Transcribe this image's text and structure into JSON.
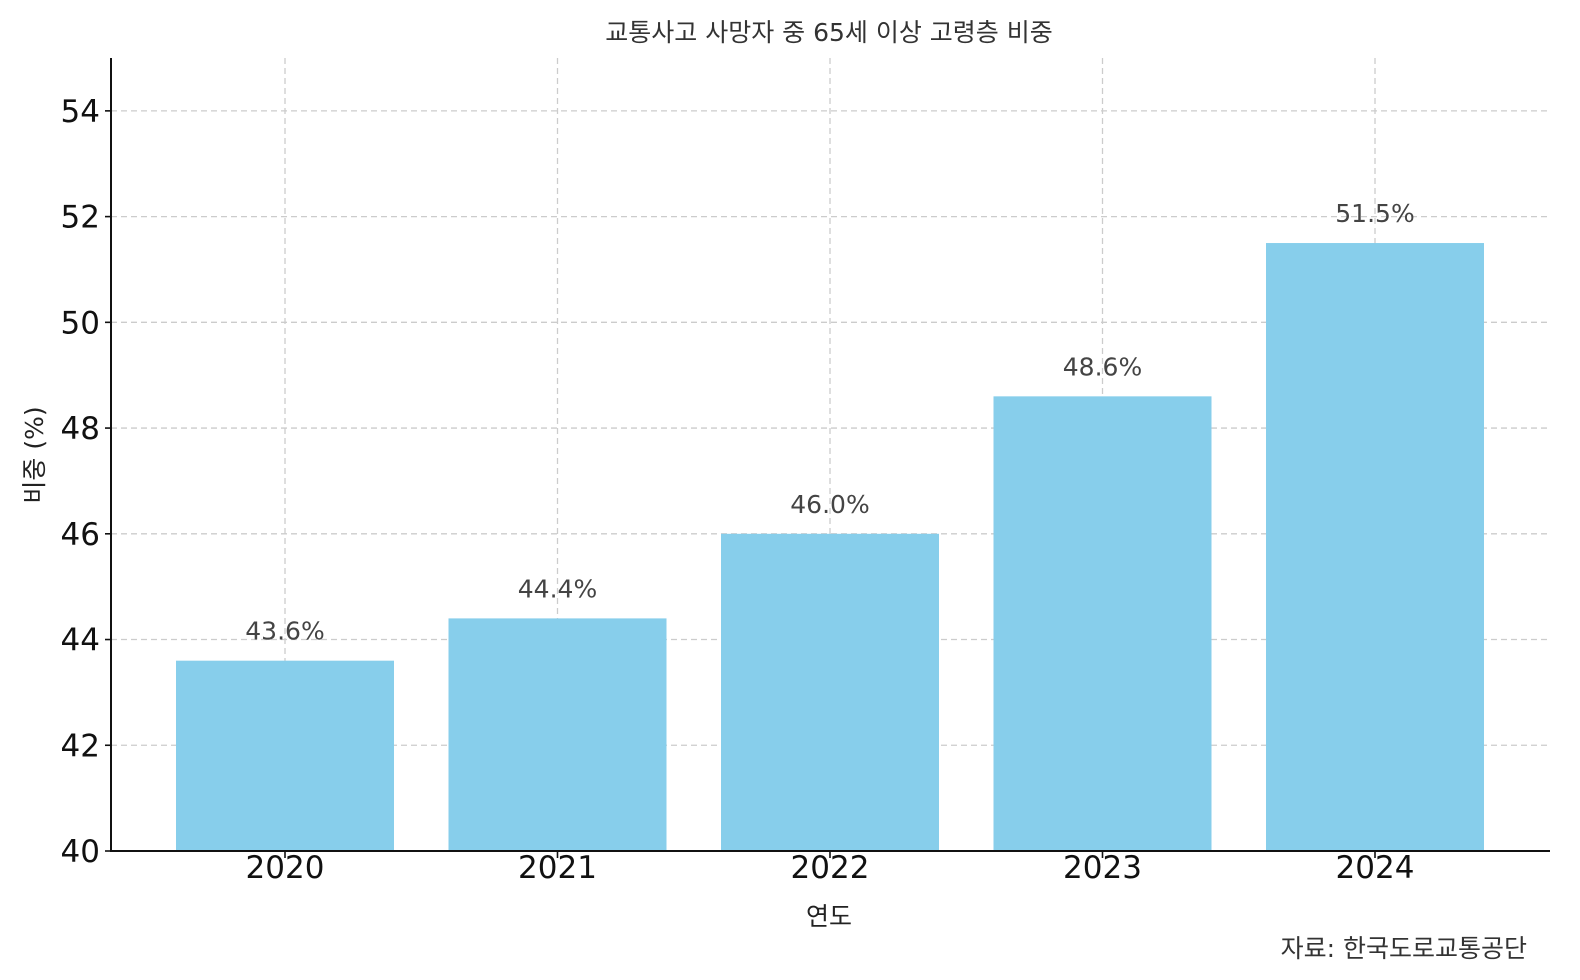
{
  "chart_data": {
    "type": "bar",
    "title": "교통사고 사망자 중 65세 이상 고령층 비중",
    "xlabel": "연도",
    "ylabel": "비중 (%)",
    "categories": [
      "2020",
      "2021",
      "2022",
      "2023",
      "2024"
    ],
    "values": [
      43.6,
      44.4,
      46.0,
      48.6,
      51.5
    ],
    "data_labels": [
      "43.6%",
      "44.4%",
      "46.0%",
      "48.6%",
      "51.5%"
    ],
    "ylim": [
      40,
      55
    ],
    "yticks": [
      40,
      42,
      44,
      46,
      48,
      50,
      52,
      54
    ],
    "grid": true,
    "bar_color": "#87ceeb",
    "source": "자료: 한국도로교통공단"
  }
}
